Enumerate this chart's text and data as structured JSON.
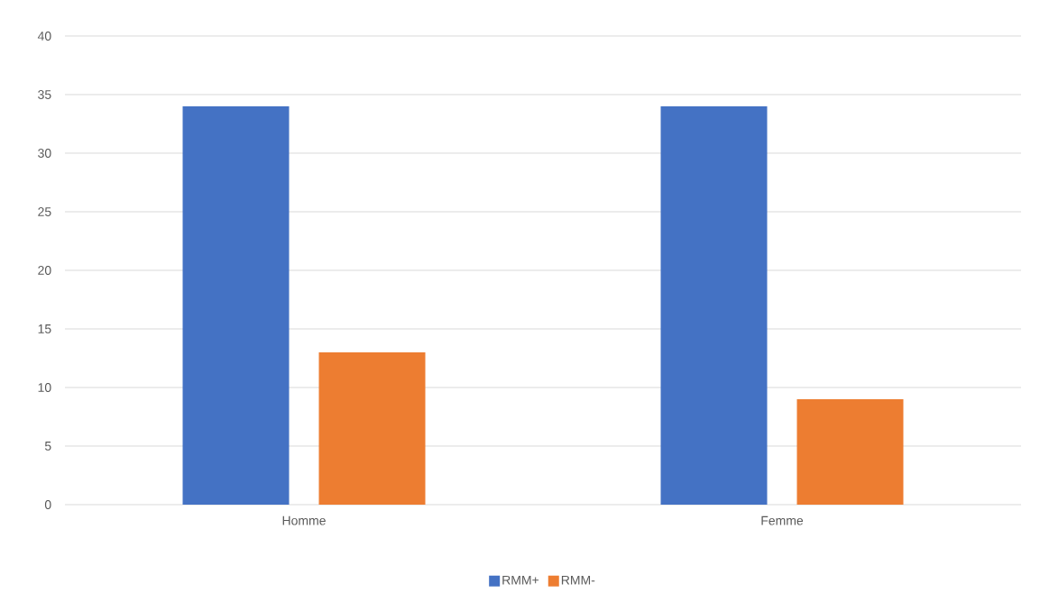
{
  "chart_data": {
    "type": "bar",
    "categories": [
      "Homme",
      "Femme"
    ],
    "series": [
      {
        "name": "RMM+",
        "color": "#4472c4",
        "values": [
          34,
          34
        ]
      },
      {
        "name": "RMM-",
        "color": "#ed7d31",
        "values": [
          13,
          9
        ]
      }
    ],
    "ylim": [
      0,
      40
    ],
    "yticks": [
      0,
      5,
      10,
      15,
      20,
      25,
      30,
      35,
      40
    ],
    "grid": "y",
    "legend": "bottom"
  }
}
